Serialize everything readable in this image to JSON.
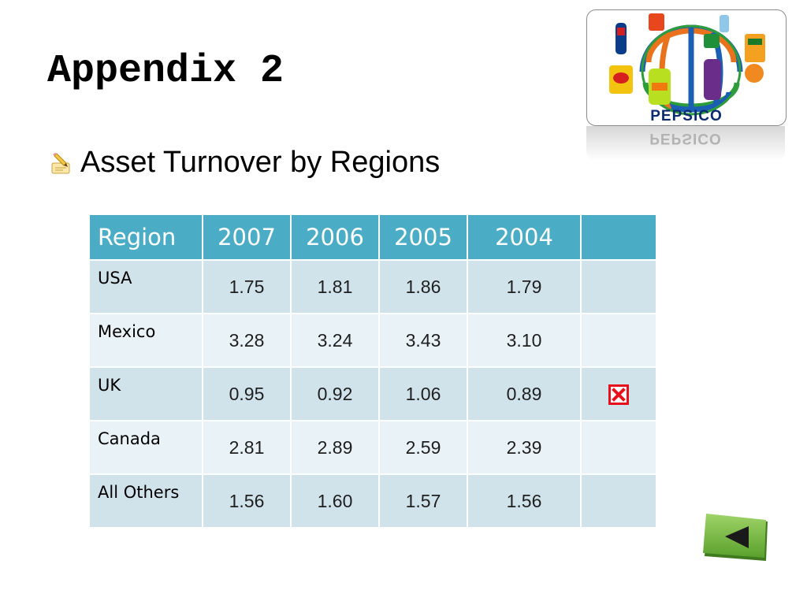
{
  "slide": {
    "title": "Appendix 2",
    "bullet_text": "Asset Turnover by Regions",
    "bullet_icon": "pencil-writing-icon"
  },
  "logo": {
    "word": "PEPSICO",
    "icon": "pepsico-globe-logo",
    "reflection_small_text": "PEPSICO"
  },
  "table": {
    "headers": [
      "Region",
      "2007",
      "2006",
      "2005",
      "2004",
      ""
    ],
    "rows": [
      {
        "region": "USA",
        "values": [
          "1.75",
          "1.81",
          "1.86",
          "1.79"
        ],
        "flag": ""
      },
      {
        "region": "Mexico",
        "values": [
          "3.28",
          "3.24",
          "3.43",
          "3.10"
        ],
        "flag": ""
      },
      {
        "region": "UK",
        "values": [
          "0.95",
          "0.92",
          "1.06",
          "0.89"
        ],
        "flag": "x-mark-icon"
      },
      {
        "region": "Canada",
        "values": [
          "2.81",
          "2.89",
          "2.59",
          "2.39"
        ],
        "flag": ""
      },
      {
        "region": "All Others",
        "values": [
          "1.56",
          "1.60",
          "1.57",
          "1.56"
        ],
        "flag": ""
      }
    ]
  },
  "colors": {
    "header_bg": "#4bacc6",
    "row_odd": "#d0e3eb",
    "row_even": "#e9f2f6",
    "x_mark": "#e8101a",
    "back_button": "#6db33f"
  },
  "nav": {
    "back_icon": "triangle-left-icon"
  }
}
